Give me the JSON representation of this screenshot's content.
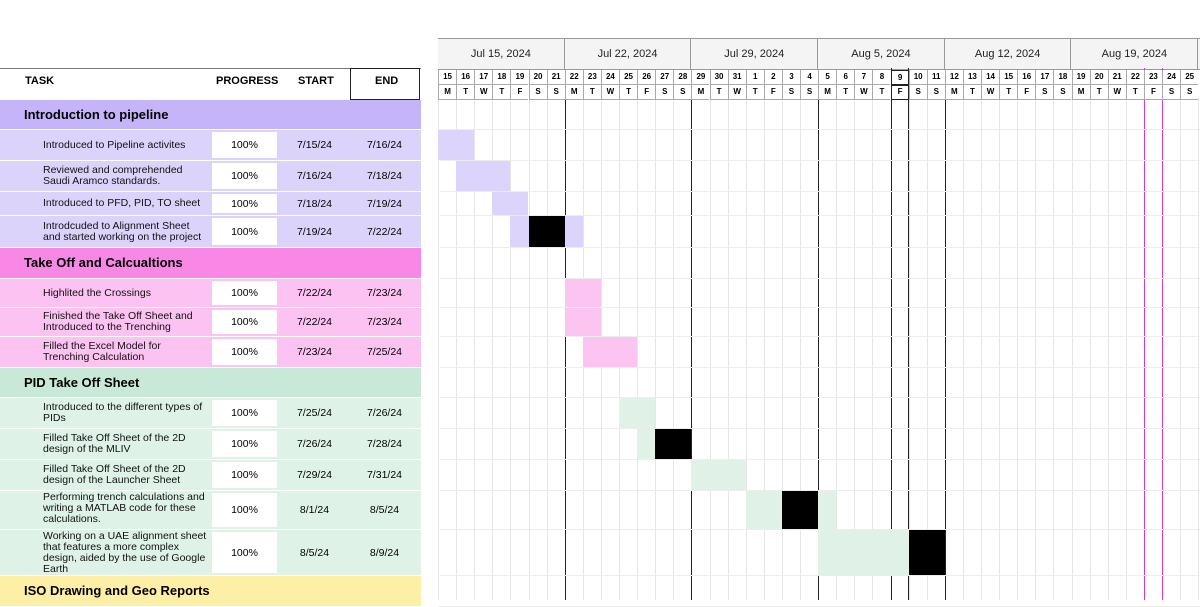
{
  "header": {
    "task_label": "TASK",
    "progress_label": "PROGRESS",
    "start_label": "START",
    "end_label": "END"
  },
  "weeks": [
    "Jul 15, 2024",
    "Jul 22, 2024",
    "Jul 29, 2024",
    "Aug 5, 2024",
    "Aug 12, 2024",
    "Aug 19, 2024"
  ],
  "days": {
    "numbers": [
      "15",
      "16",
      "17",
      "18",
      "19",
      "20",
      "21",
      "22",
      "23",
      "24",
      "25",
      "26",
      "27",
      "28",
      "29",
      "30",
      "31",
      "1",
      "2",
      "3",
      "4",
      "5",
      "6",
      "7",
      "8",
      "9",
      "10",
      "11",
      "12",
      "13",
      "14",
      "15",
      "16",
      "17",
      "18",
      "19",
      "20",
      "21",
      "22",
      "23",
      "24",
      "25"
    ],
    "names": [
      "M",
      "T",
      "W",
      "T",
      "F",
      "S",
      "S",
      "M",
      "T",
      "W",
      "T",
      "F",
      "S",
      "S",
      "M",
      "T",
      "W",
      "T",
      "F",
      "S",
      "S",
      "M",
      "T",
      "W",
      "T",
      "F",
      "S",
      "S",
      "M",
      "T",
      "W",
      "T",
      "F",
      "S",
      "S",
      "M",
      "T",
      "W",
      "T",
      "F",
      "S",
      "S"
    ]
  },
  "sections": [
    {
      "title": "Introduction to pipeline",
      "color": "#c6b4fa",
      "row_color": "#dcd3fb",
      "bar_color": "#ddd4fb",
      "tasks": [
        {
          "name": "Introduced to Pipeline activites",
          "progress": "100%",
          "start": "7/15/24",
          "end": "7/16/24"
        },
        {
          "name": "Reviewed and comprehended Saudi Aramco standards.",
          "progress": "100%",
          "start": "7/16/24",
          "end": "7/18/24"
        },
        {
          "name": "Introduced to PFD, PID, TO sheet",
          "progress": "100%",
          "start": "7/18/24",
          "end": "7/19/24"
        },
        {
          "name": "Introdcuded to Alignment Sheet and started working on the project",
          "progress": "100%",
          "start": "7/19/24",
          "end": "7/22/24"
        }
      ]
    },
    {
      "title": "Take Off and Calcualtions",
      "color": "#f887e6",
      "row_color": "#fcc2f1",
      "bar_color": "#fcc4f1",
      "tasks": [
        {
          "name": "Highlited the Crossings",
          "progress": "100%",
          "start": "7/22/24",
          "end": "7/23/24"
        },
        {
          "name": "Finished the Take Off Sheet and Introduced to the Trenching",
          "progress": "100%",
          "start": "7/22/24",
          "end": "7/23/24"
        },
        {
          "name": "Filled the Excel Model for Trenching Calculation",
          "progress": "100%",
          "start": "7/23/24",
          "end": "7/25/24"
        }
      ]
    },
    {
      "title": "PID Take Off Sheet",
      "color": "#c8e8d8",
      "row_color": "#def2e8",
      "bar_color": "#e0f2e8",
      "tasks": [
        {
          "name": "Introduced to the different types of PIDs",
          "progress": "100%",
          "start": "7/25/24",
          "end": "7/26/24"
        },
        {
          "name": "Filled Take Off Sheet of the 2D design of the MLIV",
          "progress": "100%",
          "start": "7/26/24",
          "end": "7/28/24"
        },
        {
          "name": "Filled Take Off Sheet of the 2D design of the Launcher Sheet",
          "progress": "100%",
          "start": "7/29/24",
          "end": "7/31/24"
        },
        {
          "name": "Performing trench calculations and writing a MATLAB code for these calculations.",
          "progress": "100%",
          "start": "8/1/24",
          "end": "8/5/24"
        },
        {
          "name": "Working on a UAE alignment sheet that features a more complex design, aided by the use of Google Earth",
          "progress": "100%",
          "start": "8/5/24",
          "end": "8/9/24"
        }
      ]
    },
    {
      "title": "ISO Drawing and Geo Reports",
      "color": "#fdf0a6",
      "row_color": "#fdf6c8",
      "bar_color": "#fdf6c8",
      "tasks": []
    }
  ]
}
